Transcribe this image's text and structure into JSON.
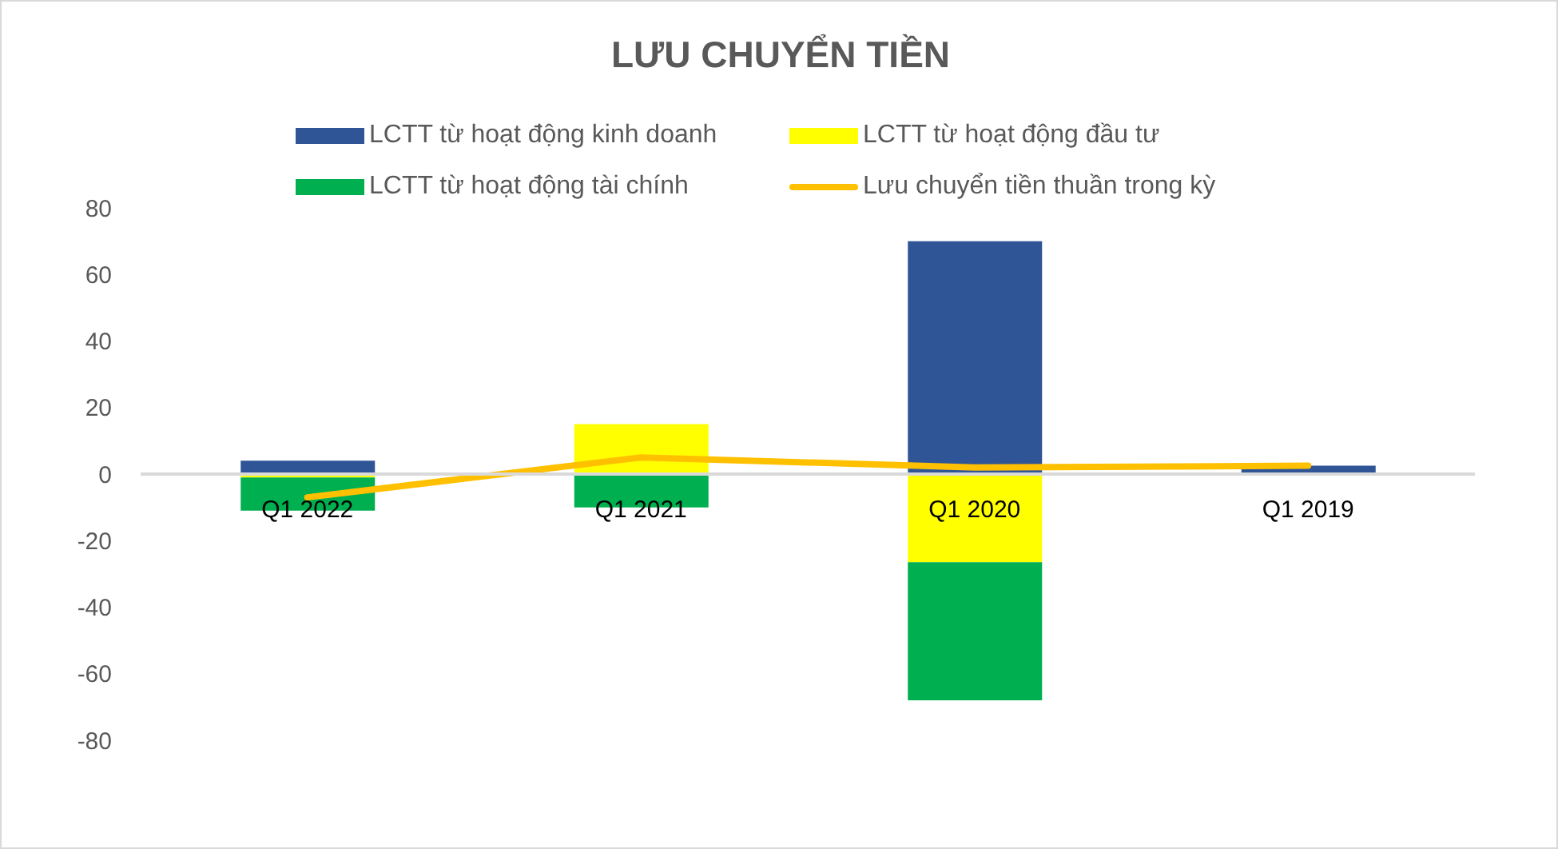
{
  "chart_data": {
    "type": "bar",
    "title": "LƯU CHUYỂN TIỀN",
    "categories": [
      "Q1 2022",
      "Q1 2021",
      "Q1 2020",
      "Q1 2019"
    ],
    "series": [
      {
        "name": "LCTT từ hoạt động kinh doanh",
        "color": "#2f5597",
        "values": [
          4,
          0,
          70,
          2.5
        ]
      },
      {
        "name": "LCTT từ hoạt động đầu tư",
        "color": "#ffff00",
        "values": [
          -1,
          15,
          -26.5,
          0
        ]
      },
      {
        "name": "LCTT từ hoạt động tài chính",
        "color": "#00b050",
        "values": [
          -10,
          -10,
          -41.5,
          0
        ]
      },
      {
        "name": "Lưu chuyển tiền thuần trong kỳ",
        "type": "line",
        "color": "#ffc000",
        "values": [
          -7,
          5,
          2,
          2.5
        ]
      }
    ],
    "stacked": true,
    "ylim": [
      -80,
      80
    ],
    "yticks": [
      -80,
      -60,
      -40,
      -20,
      0,
      20,
      40,
      60,
      80
    ],
    "legend": "top",
    "marker": "none"
  }
}
